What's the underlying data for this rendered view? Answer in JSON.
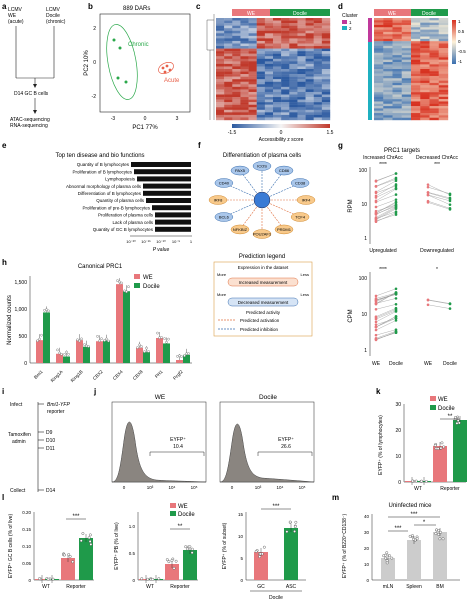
{
  "figure": {
    "panel_letters": [
      "a",
      "b",
      "c",
      "d",
      "e",
      "f",
      "g",
      "h",
      "i",
      "j",
      "k",
      "l",
      "m"
    ],
    "colors": {
      "we": "#e8777b",
      "docile": "#1f9a4a",
      "chronic": "#2aa84a",
      "acute": "#e8604a",
      "heat_red": "#c0392b",
      "heat_blue": "#2c5aa0",
      "reporter_blue": "#2f6fbf"
    }
  },
  "panel_a": {
    "left_group": [
      "LCMV",
      "WE",
      "(acute)"
    ],
    "right_group": [
      "LCMV",
      "Docile",
      "(chronic)"
    ],
    "middle": "D14 GC B cells",
    "bottom": [
      "ATAC-sequencing",
      "RNA-sequencing"
    ]
  },
  "panel_b": {
    "title": "889 DARs",
    "xlabel": "PC1 77%",
    "ylabel": "PC2 10%",
    "label_chronic": "Chronic",
    "label_acute": "Acute",
    "xticks": [
      "-3",
      "0",
      "3"
    ],
    "yticks": [
      "2",
      "0",
      "-2"
    ]
  },
  "panel_c": {
    "header_we": "WE",
    "header_docile": "Docile",
    "colorbar_label": "Accessibility z score",
    "colorbar_ticks": [
      "-1.5",
      "0",
      "1.5"
    ]
  },
  "panel_d": {
    "cluster_label": "Cluster",
    "header_we": "WE",
    "header_docile": "Docile",
    "cluster_ids": [
      "1",
      "2"
    ],
    "legend_ticks": [
      "1",
      "0.5",
      "0",
      "-0.5",
      "-1"
    ]
  },
  "panel_e": {
    "title": "Top ten disease and bio functions",
    "xlabel": "P value",
    "xticks": [
      "10⁻²⁰",
      "10⁻¹⁵",
      "10⁻¹⁰",
      "10⁻⁵",
      "1"
    ],
    "chart_data": {
      "type": "bar",
      "categories": [
        "Quantity of B lymphocytes",
        "Proliferation of B lymphocytes",
        "Lymphopoiesis",
        "Abnormal morphology of plasma cells",
        "Differentiation of B lymphocytes",
        "Quantity of plasma cells",
        "Proliferation of pre-B lymphocytes",
        "Proliferation of plasma cells",
        "Lack of plasma cells",
        "Quantity of GC B lymphocytes"
      ],
      "values": [
        20,
        19,
        18,
        16,
        16,
        15,
        13,
        12,
        12,
        12
      ],
      "value_unit": "-log10 P"
    }
  },
  "panel_f": {
    "title": "Differentiation of plasma cells",
    "nodes": [
      "ICOS",
      "CD86",
      "CD38",
      "IRF4",
      "TCF4",
      "PRDM1",
      "POU2AF1",
      "NFKBIZ",
      "BCL6",
      "IRF8",
      "CD40",
      "PAX5"
    ],
    "legend_title": "Prediction legend",
    "legend_sub": "Expression in the dataset",
    "more": "More",
    "less": "Less",
    "increased": "Increased measurement",
    "decreased": "Decreased measurement",
    "predicted_activity": "Predicted activity",
    "predicted_activation": "Predicted activation",
    "predicted_inhibition": "Predicted inhibition"
  },
  "panel_g": {
    "title": "PRC1 targets",
    "col1": "Increased ChrAcc",
    "col2": "Decreased ChrAcc",
    "sig1": "****",
    "sig2": "***",
    "sig3": "****",
    "sig4": "*",
    "ylabel_top": "RPM",
    "ylabel_bottom": "CPM",
    "top_yticks": [
      "100",
      "10",
      "1"
    ],
    "bottom_yticks": [
      "100",
      "10",
      "1"
    ],
    "label_up": "Upregulated",
    "label_down": "Downregulated",
    "x_we": "WE",
    "x_docile": "Docile"
  },
  "panel_h": {
    "title": "Canonical PRC1",
    "ylabel": "Normalized counts",
    "legend": [
      "WE",
      "Docile"
    ],
    "yticks": [
      "0",
      "500",
      "1,000",
      "1,500"
    ],
    "chart_data": {
      "type": "bar",
      "categories": [
        "Bmi1",
        "Ring1A",
        "Ring1B",
        "CBX2",
        "CBX4",
        "CBX8",
        "PH1",
        "Pcgf2"
      ],
      "series": [
        {
          "name": "WE",
          "values": [
            420,
            170,
            420,
            400,
            1450,
            280,
            460,
            55
          ]
        },
        {
          "name": "Docile",
          "values": [
            930,
            120,
            300,
            410,
            1320,
            200,
            360,
            150
          ]
        }
      ],
      "ylim": [
        0,
        1600
      ]
    }
  },
  "panel_i": {
    "infect": "Infect",
    "reporter": "Bmi1-YFP",
    "reporter2": "reporter",
    "tam": "Tamoxifen",
    "admin": "admin",
    "days": [
      "D9",
      "D10",
      "D11"
    ],
    "collect": "Collect",
    "d14": "D14"
  },
  "panel_j": {
    "title_we": "WE",
    "title_docile": "Docile",
    "gate_label": "EYFP⁺",
    "value_we": "10.4",
    "value_docile": "26.6",
    "ylabel": "% of max",
    "xticks": [
      "0",
      "10³",
      "10⁴",
      "10⁵"
    ],
    "xlabel": "EYFP"
  },
  "panel_k": {
    "ylabel": "EYFP⁺ (% of lymphocytes)",
    "legend": [
      "WE",
      "Docile"
    ],
    "sig": "**",
    "categories": [
      "WT",
      "Reporter"
    ],
    "yticks": [
      "0",
      "10",
      "20",
      "30"
    ]
  },
  "panel_l": {
    "plot1_ylabel": "EYFP⁺ GC B cells (% of live)",
    "plot1_sig": "***",
    "plot1_yticks": [
      "0",
      "0.05",
      "0.10",
      "0.15",
      "0.20"
    ],
    "plot2_ylabel": "EYFP⁺ PB (% of live)",
    "plot2_sig": "**",
    "plot2_yticks": [
      "0",
      "0.5",
      "1.0"
    ],
    "plot3_ylabel": "EYFP⁺ (% of subset)",
    "plot3_sig": "***",
    "plot3_yticks": [
      "0",
      "5",
      "10",
      "15"
    ],
    "categories": [
      "WT",
      "Reporter"
    ],
    "cats3": [
      "GC",
      "ASC"
    ],
    "docile_label": "Docile",
    "legend": [
      "WE",
      "Docile"
    ]
  },
  "panel_m": {
    "title": "Uninfected mice",
    "ylabel": "EYFP⁺ (% of B220⁺CD138⁻)",
    "categories": [
      "mLN",
      "Spleen",
      "BM"
    ],
    "sig": [
      "***",
      "*",
      "***"
    ],
    "yticks": [
      "0",
      "10",
      "20",
      "30",
      "40"
    ]
  }
}
